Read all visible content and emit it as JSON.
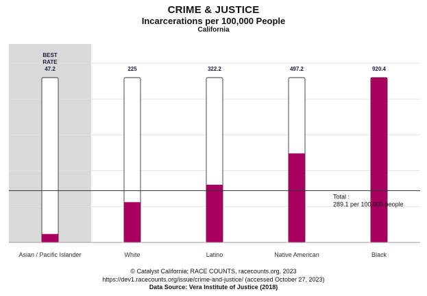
{
  "header": {
    "title": "CRIME & JUSTICE",
    "subtitle": "Incarcerations per 100,000 People",
    "region": "California"
  },
  "footer": {
    "credit": "© Catalyst California; RACE COUNTS, racecounts.org, 2023",
    "url": "https://dev1.racecounts.org/issue/crime-and-justice/ (accessed October 27, 2023)",
    "source": "Data Source: Vera Institute of Justice (2018)"
  },
  "chart_data": {
    "type": "bar",
    "categories": [
      "Asian / Pacific Islander",
      "White",
      "Latino",
      "Native American",
      "Black"
    ],
    "values": [
      47.2,
      225,
      322.2,
      497.2,
      920.4
    ],
    "value_labels": [
      "47.2",
      "225",
      "322.2",
      "497.2",
      "920.4"
    ],
    "best_rate_label": [
      "BEST",
      "RATE"
    ],
    "best_rate_category": "Asian / Pacific Islander",
    "ylim": [
      0,
      920.4
    ],
    "reference_line": {
      "value": 289.1,
      "label_line1": "Total :",
      "label_line2": "289.1 per 100,000 people"
    },
    "grid": true,
    "colors": {
      "bar": "#a8005f",
      "best_highlight": "#d9d9d9",
      "outline": "#333333",
      "reference": "#333333",
      "grid": "#e3e3e3"
    }
  }
}
